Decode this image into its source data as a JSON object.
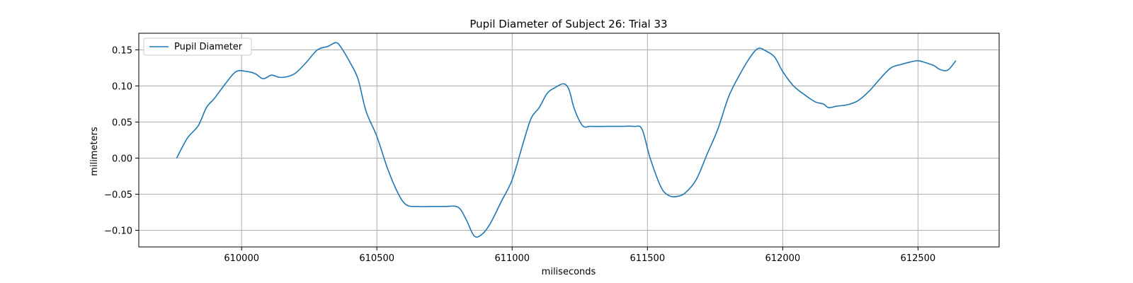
{
  "chart_data": {
    "type": "line",
    "title": "Pupil Diameter of Subject 26: Trial 33",
    "xlabel": "miliseconds",
    "ylabel": "milimeters",
    "xlim": [
      609620,
      612800
    ],
    "ylim": [
      -0.123,
      0.173
    ],
    "xticks": [
      610000,
      610500,
      611000,
      611500,
      612000,
      612500
    ],
    "yticks": [
      -0.1,
      -0.05,
      0.0,
      0.05,
      0.1,
      0.15
    ],
    "xtick_labels": [
      "610000",
      "610500",
      "611000",
      "611500",
      "612000",
      "612500"
    ],
    "ytick_labels": [
      "−0.10",
      "−0.05",
      "0.00",
      "0.05",
      "0.10",
      "0.15"
    ],
    "grid": true,
    "legend_position": "top-left",
    "colors": {
      "line": "#1f77b4",
      "grid": "#b0b0b0",
      "axis": "#000000"
    },
    "series": [
      {
        "name": "Pupil Diameter",
        "x": [
          609760,
          609800,
          609840,
          609870,
          609900,
          609940,
          609980,
          610020,
          610050,
          610080,
          610110,
          610140,
          610170,
          610200,
          610240,
          610280,
          610320,
          610350,
          610370,
          610400,
          610430,
          610460,
          610500,
          610540,
          610580,
          610610,
          610650,
          610700,
          610750,
          610800,
          610830,
          610860,
          610890,
          610920,
          610960,
          611000,
          611040,
          611070,
          611100,
          611130,
          611160,
          611190,
          611210,
          611230,
          611260,
          611290,
          611350,
          611400,
          611450,
          611480,
          611510,
          611550,
          611580,
          611610,
          611640,
          611680,
          611720,
          611760,
          611800,
          611840,
          611880,
          611910,
          611940,
          611970,
          612000,
          612040,
          612080,
          612120,
          612150,
          612170,
          612200,
          612240,
          612280,
          612320,
          612360,
          612400,
          612440,
          612470,
          612500,
          612530,
          612560,
          612580,
          612610,
          612640
        ],
        "y": [
          0.0,
          0.028,
          0.045,
          0.07,
          0.083,
          0.103,
          0.12,
          0.12,
          0.117,
          0.11,
          0.115,
          0.112,
          0.113,
          0.118,
          0.133,
          0.15,
          0.155,
          0.16,
          0.152,
          0.133,
          0.11,
          0.065,
          0.03,
          -0.015,
          -0.05,
          -0.065,
          -0.067,
          -0.067,
          -0.067,
          -0.068,
          -0.085,
          -0.108,
          -0.105,
          -0.09,
          -0.06,
          -0.03,
          0.02,
          0.055,
          0.07,
          0.09,
          0.098,
          0.103,
          0.095,
          0.068,
          0.045,
          0.044,
          0.044,
          0.044,
          0.044,
          0.04,
          0.0,
          -0.04,
          -0.052,
          -0.053,
          -0.048,
          -0.03,
          0.005,
          0.04,
          0.085,
          0.115,
          0.14,
          0.152,
          0.148,
          0.14,
          0.12,
          0.1,
          0.088,
          0.078,
          0.075,
          0.07,
          0.072,
          0.074,
          0.08,
          0.093,
          0.11,
          0.125,
          0.13,
          0.133,
          0.135,
          0.132,
          0.128,
          0.123,
          0.122,
          0.135
        ]
      }
    ]
  }
}
